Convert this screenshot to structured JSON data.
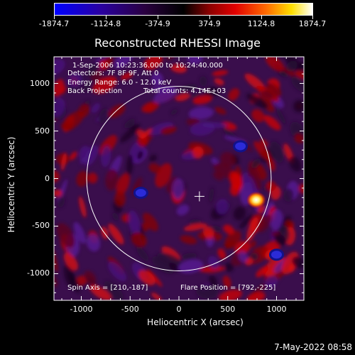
{
  "colorbar": {
    "tick_labels": [
      "-1874.7",
      "-1124.8",
      "-374.9",
      "374.9",
      "1124.8",
      "1874.7"
    ],
    "min": -1874.7,
    "max": 1874.7
  },
  "title": "Reconstructed RHESSI Image",
  "annotations": {
    "time_range": "1-Sep-2006 10:23:36.000 to 10:24:40.000",
    "detectors": "Detectors: 7F 8F 9F, Att 0",
    "energy": "Energy Range: 6.0 - 12.0 keV",
    "method": "Back Projection",
    "counts": "Total counts: 4.14E+03",
    "spin_axis": "Spin Axis = [210,-187]",
    "flare_position": "Flare Position = [792,-225]"
  },
  "axes": {
    "xlabel": "Heliocentric X (arcsec)",
    "ylabel": "Heliocentric Y (arcsec)",
    "xticks": [
      "-1000",
      "-500",
      "0",
      "500",
      "1000"
    ],
    "yticks": [
      "1000",
      "500",
      "0",
      "-500",
      "-1000"
    ],
    "x_values": [
      -1000,
      -500,
      0,
      500,
      1000
    ],
    "y_values": [
      1000,
      500,
      0,
      -500,
      -1000
    ],
    "xlim": [
      -1280,
      1280
    ],
    "ylim": [
      -1280,
      1280
    ]
  },
  "features": {
    "solar_limb_radius_arcsec": 945,
    "spin_axis": [
      210,
      -187
    ],
    "bright_source": [
      792,
      -225
    ],
    "negative_blobs": [
      [
        -390,
        -150
      ],
      [
        630,
        340
      ],
      [
        1000,
        -800
      ]
    ]
  },
  "footer_date": "7-May-2022 08:58"
}
